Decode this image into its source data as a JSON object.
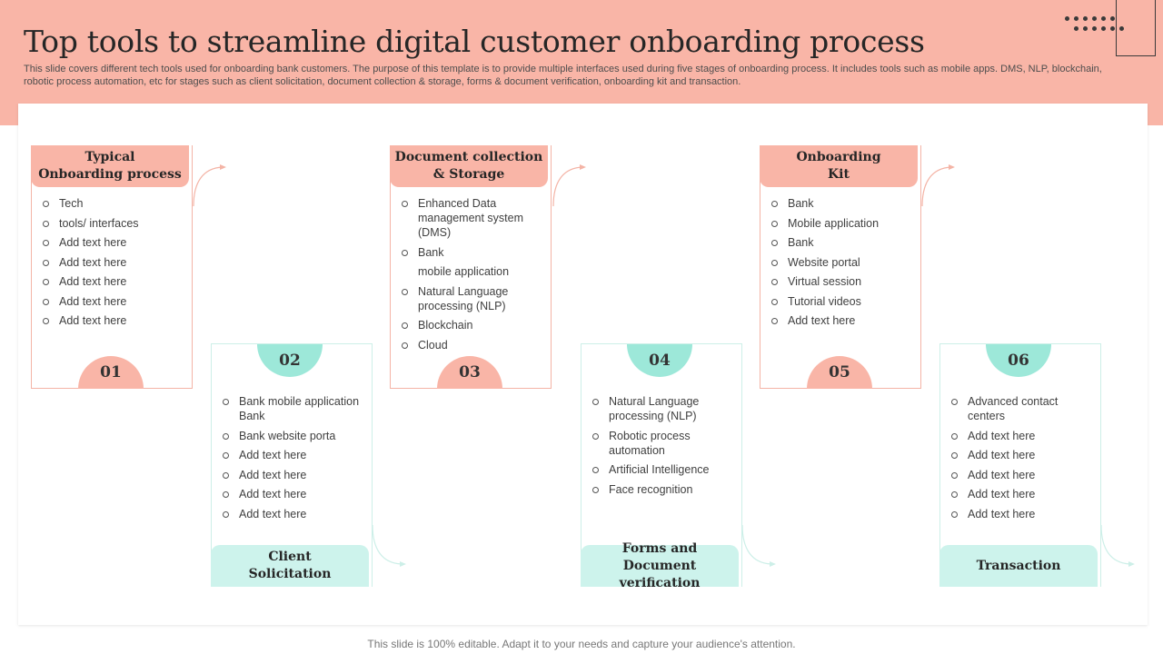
{
  "header": {
    "title": "Top tools to streamline digital customer onboarding process",
    "subtitle": "This slide covers different tech tools used for onboarding bank customers. The purpose of this template is to provide multiple interfaces used during five stages of onboarding process. It includes tools such as mobile apps. DMS, NLP, blockchain, robotic process automation, etc for stages such as client solicitation, document collection & storage, forms & document verification, onboarding kit and transaction."
  },
  "colors": {
    "header_bg": "#F9B5A7",
    "salmon": "#F9B5A7",
    "mint": "#9DE8D9",
    "mint_light": "#CDF3EC"
  },
  "stages": [
    {
      "number": "01",
      "label": "Typical\nOnboarding process",
      "items": [
        "Tech",
        "tools/ interfaces",
        "Add text here",
        "Add text here",
        "Add text here",
        "Add text here",
        "Add text here"
      ]
    },
    {
      "number": "02",
      "label": "Client\nSolicitation",
      "items": [
        "Bank mobile application Bank",
        "Bank website porta",
        "Add text here",
        "Add text here",
        "Add text here",
        "Add text here"
      ]
    },
    {
      "number": "03",
      "label": "Document collection\n& Storage",
      "items": [
        "Enhanced Data management system (DMS)",
        "Bank",
        "mobile application",
        "Natural Language processing (NLP)",
        "Blockchain",
        "Cloud"
      ]
    },
    {
      "number": "04",
      "label": "Forms and\nDocument verification",
      "items": [
        "Natural Language processing (NLP)",
        "Robotic process automation",
        "Artificial Intelligence",
        "Face recognition"
      ]
    },
    {
      "number": "05",
      "label": "Onboarding\nKit",
      "items": [
        "Bank",
        "Mobile application",
        "Bank",
        "Website portal",
        "Virtual session",
        "Tutorial videos",
        "Add text here"
      ]
    },
    {
      "number": "06",
      "label": "Transaction",
      "items": [
        "Advanced contact centers",
        "Add text here",
        "Add text here",
        "Add text here",
        "Add text here",
        "Add text here"
      ]
    }
  ],
  "footer": "This slide is 100% editable. Adapt it to your needs and capture your audience's attention."
}
